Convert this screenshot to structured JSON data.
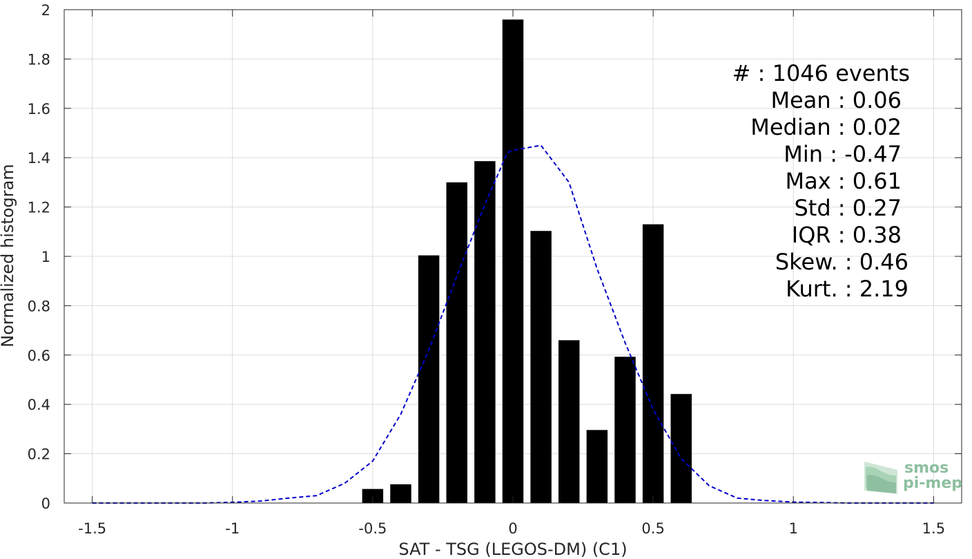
{
  "chart_data": {
    "type": "bar",
    "xlabel": "SAT - TSG (LEGOS-DM) (C1)",
    "ylabel": "Normalized histogram",
    "xlim": [
      -1.6,
      1.6
    ],
    "ylim": [
      0,
      2
    ],
    "grid": true,
    "x_ticks": [
      -1.5,
      -1,
      -0.5,
      0,
      0.5,
      1,
      1.5
    ],
    "x_tick_labels": [
      "-1.5",
      "-1",
      "-0.5",
      "0",
      "0.5",
      "1",
      "1.5"
    ],
    "y_ticks": [
      0,
      0.2,
      0.4,
      0.6,
      0.8,
      1,
      1.2,
      1.4,
      1.6,
      1.8,
      2
    ],
    "y_tick_labels": [
      "0",
      "0.2",
      "0.4",
      "0.6",
      "0.8",
      "1",
      "1.2",
      "1.4",
      "1.6",
      "1.8",
      "2"
    ],
    "bar_width": 0.075,
    "bar_color": "#000000",
    "bars": {
      "x": [
        -0.5,
        -0.4,
        -0.3,
        -0.2,
        -0.1,
        0.0,
        0.1,
        0.2,
        0.3,
        0.4,
        0.5,
        0.6
      ],
      "values": [
        0.057,
        0.076,
        1.004,
        1.3,
        1.386,
        1.96,
        1.103,
        0.66,
        0.296,
        0.593,
        1.13,
        0.442
      ]
    },
    "fit_curve": {
      "style": "dashed",
      "color": "#0000cc",
      "x": [
        -1.5,
        -1.4,
        -1.3,
        -1.2,
        -1.1,
        -1.0,
        -0.9,
        -0.8,
        -0.7,
        -0.6,
        -0.5,
        -0.4,
        -0.3,
        -0.2,
        -0.1,
        -0.02,
        0.0,
        0.1,
        0.2,
        0.3,
        0.4,
        0.5,
        0.6,
        0.7,
        0.8,
        0.9,
        1.0,
        1.1,
        1.2,
        1.3,
        1.4,
        1.5
      ],
      "y": [
        0,
        0,
        0,
        0,
        0,
        0.003,
        0.008,
        0.02,
        0.03,
        0.08,
        0.17,
        0.36,
        0.62,
        0.92,
        1.21,
        1.42,
        1.43,
        1.45,
        1.3,
        0.95,
        0.65,
        0.38,
        0.18,
        0.07,
        0.02,
        0.01,
        0.004,
        0.002,
        0,
        0,
        0,
        0
      ]
    },
    "stats": [
      {
        "label": "#  : 1046 events"
      },
      {
        "label": "Mean : 0.06"
      },
      {
        "label": "Median : 0.02"
      },
      {
        "label": "Min : -0.47"
      },
      {
        "label": "Max : 0.61"
      },
      {
        "label": "Std : 0.27"
      },
      {
        "label": "IQR : 0.38"
      },
      {
        "label": "Skew. : 0.46"
      },
      {
        "label": "Kurt. : 2.19"
      }
    ]
  },
  "logo": {
    "line1": "smos",
    "line2": "pi-mep"
  }
}
